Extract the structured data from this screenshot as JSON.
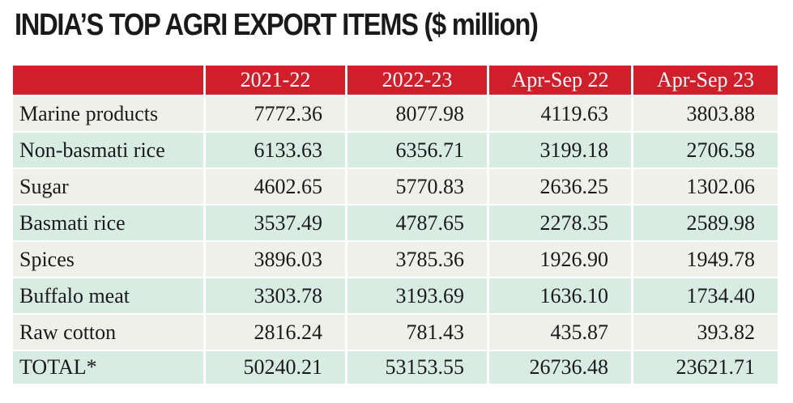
{
  "title": "INDIA’S TOP AGRI EXPORT ITEMS ($ million)",
  "colors": {
    "header_bg": "#cf1f2a",
    "header_text": "#ffffff",
    "row_light": "#f0f0ea",
    "row_tint": "#d8ece3"
  },
  "chart_data": {
    "type": "table",
    "title": "INDIA’S TOP AGRI EXPORT ITEMS ($ million)",
    "columns": [
      "",
      "2021-22",
      "2022-23",
      "Apr-Sep 22",
      "Apr-Sep 23"
    ],
    "rows": [
      {
        "label": "Marine products",
        "values": [
          "7772.36",
          "8077.98",
          "4119.63",
          "3803.88"
        ]
      },
      {
        "label": "Non-basmati rice",
        "values": [
          "6133.63",
          "6356.71",
          "3199.18",
          "2706.58"
        ]
      },
      {
        "label": "Sugar",
        "values": [
          "4602.65",
          "5770.83",
          "2636.25",
          "1302.06"
        ]
      },
      {
        "label": "Basmati rice",
        "values": [
          "3537.49",
          "4787.65",
          "2278.35",
          "2589.98"
        ]
      },
      {
        "label": "Spices",
        "values": [
          "3896.03",
          "3785.36",
          "1926.90",
          "1949.78"
        ]
      },
      {
        "label": "Buffalo meat",
        "values": [
          "3303.78",
          "3193.69",
          "1636.10",
          "1734.40"
        ]
      },
      {
        "label": "Raw cotton",
        "values": [
          "2816.24",
          "781.43",
          "435.87",
          "393.82"
        ]
      },
      {
        "label": "TOTAL*",
        "values": [
          "50240.21",
          "53153.55",
          "26736.48",
          "23621.71"
        ]
      }
    ]
  }
}
